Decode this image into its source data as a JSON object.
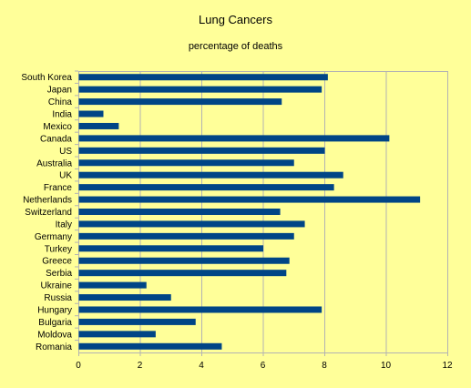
{
  "chart_data": {
    "type": "bar",
    "orientation": "horizontal",
    "title": "Lung Cancers",
    "subtitle": "percentage of deaths",
    "categories": [
      "South Korea",
      "Japan",
      "China",
      "India",
      "Mexico",
      "Canada",
      "US",
      "Australia",
      "UK",
      "France",
      "Netherlands",
      "Switzerland",
      "Italy",
      "Germany",
      "Turkey",
      "Greece",
      "Serbia",
      "Ukraine",
      "Russia",
      "Hungary",
      "Bulgaria",
      "Moldova",
      "Romania"
    ],
    "values": [
      8.1,
      7.9,
      6.6,
      0.8,
      1.3,
      10.1,
      8.0,
      7.0,
      8.6,
      8.3,
      11.1,
      6.55,
      7.35,
      7.0,
      6.0,
      6.85,
      6.75,
      2.2,
      3.0,
      7.9,
      3.8,
      2.5,
      4.65
    ],
    "xlim": [
      0,
      12
    ],
    "xticks": [
      0,
      2,
      4,
      6,
      8,
      10,
      12
    ],
    "grid": "vertical",
    "legend": "none",
    "colors": {
      "bar": "#004586",
      "background": "#ffff99",
      "grid": "#b3b3b3",
      "axis": "#b3b3b3"
    }
  }
}
